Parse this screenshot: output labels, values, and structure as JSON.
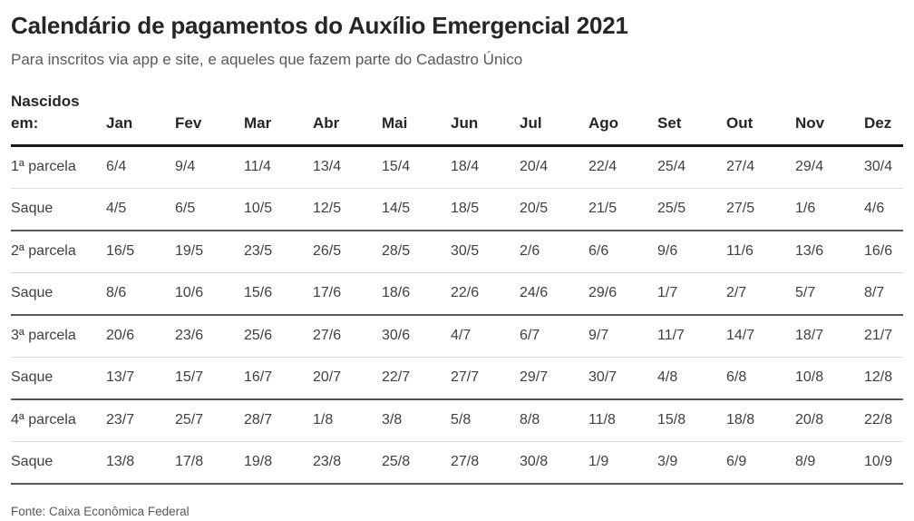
{
  "chart_data": {
    "type": "table",
    "title": "Calendário de pagamentos do Auxílio Emergencial 2021",
    "subtitle": "Para inscritos via app e site, e aqueles que fazem parte do Cadastro Único",
    "source": "Fonte: Caixa Econômica Federal",
    "corner_label": "Nascidos\nem:",
    "columns": [
      "Jan",
      "Fev",
      "Mar",
      "Abr",
      "Mai",
      "Jun",
      "Jul",
      "Ago",
      "Set",
      "Out",
      "Nov",
      "Dez"
    ],
    "rows": [
      {
        "label": "1ª parcela",
        "values": [
          "6/4",
          "9/4",
          "11/4",
          "13/4",
          "15/4",
          "18/4",
          "20/4",
          "22/4",
          "25/4",
          "27/4",
          "29/4",
          "30/4"
        ]
      },
      {
        "label": "Saque",
        "values": [
          "4/5",
          "6/5",
          "10/5",
          "12/5",
          "14/5",
          "18/5",
          "20/5",
          "21/5",
          "25/5",
          "27/5",
          "1/6",
          "4/6"
        ]
      },
      {
        "label": "2ª parcela",
        "values": [
          "16/5",
          "19/5",
          "23/5",
          "26/5",
          "28/5",
          "30/5",
          "2/6",
          "6/6",
          "9/6",
          "11/6",
          "13/6",
          "16/6"
        ]
      },
      {
        "label": "Saque",
        "values": [
          "8/6",
          "10/6",
          "15/6",
          "17/6",
          "18/6",
          "22/6",
          "24/6",
          "29/6",
          "1/7",
          "2/7",
          "5/7",
          "8/7"
        ]
      },
      {
        "label": "3ª parcela",
        "values": [
          "20/6",
          "23/6",
          "25/6",
          "27/6",
          "30/6",
          "4/7",
          "6/7",
          "9/7",
          "11/7",
          "14/7",
          "18/7",
          "21/7"
        ]
      },
      {
        "label": "Saque",
        "values": [
          "13/7",
          "15/7",
          "16/7",
          "20/7",
          "22/7",
          "27/7",
          "29/7",
          "30/7",
          "4/8",
          "6/8",
          "10/8",
          "12/8"
        ]
      },
      {
        "label": "4ª parcela",
        "values": [
          "23/7",
          "25/7",
          "28/7",
          "1/8",
          "3/8",
          "5/8",
          "8/8",
          "11/8",
          "15/8",
          "18/8",
          "20/8",
          "22/8"
        ]
      },
      {
        "label": "Saque",
        "values": [
          "13/8",
          "17/8",
          "19/8",
          "23/8",
          "25/8",
          "27/8",
          "30/8",
          "1/9",
          "3/9",
          "6/9",
          "8/9",
          "10/9"
        ]
      }
    ]
  },
  "colors": {
    "background": "#ffffff",
    "text_primary": "#262626",
    "text_secondary": "#595959",
    "cell_text": "#404040",
    "header_rule": "#1a1a1a",
    "group_rule": "#595959",
    "row_rule": "#dcdcdc"
  }
}
